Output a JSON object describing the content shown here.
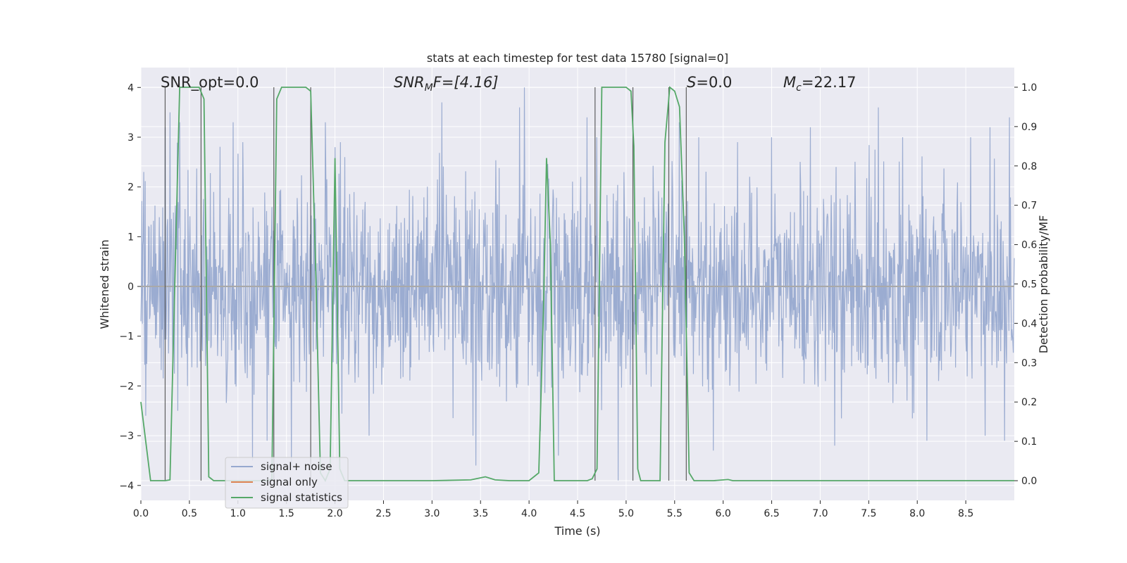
{
  "chart_data": {
    "type": "line",
    "title": "stats at each timestep for test data 15780 [signal=0]",
    "xlabel": "Time (s)",
    "ylabel": "Whitened strain",
    "y2label": "Detection probability/MF",
    "xlim": [
      0.0,
      9.0
    ],
    "ylim": [
      -4.3,
      4.4
    ],
    "y2lim": [
      -0.05,
      1.05
    ],
    "xticks": [
      "0.0",
      "0.5",
      "1.0",
      "1.5",
      "2.0",
      "2.5",
      "3.0",
      "3.5",
      "4.0",
      "4.5",
      "5.0",
      "5.5",
      "6.0",
      "6.5",
      "7.0",
      "7.5",
      "8.0",
      "8.5"
    ],
    "yticks": [
      "4",
      "3",
      "2",
      "1",
      "0",
      "−1",
      "−2",
      "−3",
      "−4"
    ],
    "y2ticks": [
      "1.0",
      "0.9",
      "0.8",
      "0.7",
      "0.6",
      "0.5",
      "0.4",
      "0.3",
      "0.2",
      "0.1",
      "0.0"
    ],
    "grid": true,
    "legend_position": "lower-left",
    "annotations": {
      "snr_opt": "SNR_opt=0.0",
      "snr_mf_main": "SNR",
      "snr_mf_sub": "M",
      "snr_mf_tail": "F=[4.16]",
      "s_main": "S",
      "s_tail": "=0.0",
      "mc_main": "M",
      "mc_sub": "c",
      "mc_tail": "=22.17"
    },
    "series": [
      {
        "name": "signal+ noise",
        "color": "#97a9cf",
        "axis": "left",
        "description": "whitened noisy strain, roughly Gaussian with unit variance, peaks up to about 4",
        "peaks": [
          [
            0.03,
            2.3
          ],
          [
            0.05,
            -2.6
          ],
          [
            0.25,
            3.2
          ],
          [
            0.3,
            3.5
          ],
          [
            0.38,
            -2.5
          ],
          [
            0.4,
            3.3
          ],
          [
            0.75,
            1.9
          ],
          [
            0.95,
            3.3
          ],
          [
            1.05,
            2.9
          ],
          [
            1.15,
            -3.5
          ],
          [
            1.3,
            -3.1
          ],
          [
            1.55,
            -3.6
          ],
          [
            1.9,
            3.3
          ],
          [
            2.0,
            2.8
          ],
          [
            2.1,
            2.6
          ],
          [
            2.35,
            -3.0
          ],
          [
            3.1,
            3.7
          ],
          [
            3.45,
            -3.6
          ],
          [
            3.9,
            3.6
          ],
          [
            3.95,
            4.0
          ],
          [
            4.3,
            -3.4
          ],
          [
            4.6,
            3.4
          ],
          [
            4.7,
            3.0
          ],
          [
            4.92,
            -3.9
          ],
          [
            5.55,
            3.3
          ],
          [
            5.75,
            3.0
          ],
          [
            5.9,
            -3.3
          ],
          [
            6.5,
            3.0
          ],
          [
            6.9,
            3.2
          ],
          [
            7.15,
            -3.2
          ],
          [
            7.6,
            3.6
          ],
          [
            7.85,
            3.0
          ],
          [
            8.1,
            -3.1
          ],
          [
            8.55,
            3.0
          ],
          [
            8.7,
            -3.0
          ],
          [
            8.75,
            3.2
          ],
          [
            8.9,
            -3.1
          ],
          [
            8.95,
            3.4
          ]
        ]
      },
      {
        "name": "signal only",
        "color": "#dd8452",
        "axis": "left",
        "x": [
          0.0,
          9.0
        ],
        "y": [
          0.0,
          0.0
        ]
      },
      {
        "name": "signal statistics",
        "color": "#55a868",
        "axis": "right",
        "x": [
          0.0,
          0.05,
          0.1,
          0.2,
          0.25,
          0.3,
          0.4,
          0.5,
          0.6,
          0.65,
          0.7,
          0.75,
          0.8,
          1.0,
          1.3,
          1.35,
          1.4,
          1.45,
          1.5,
          1.6,
          1.7,
          1.75,
          1.8,
          1.85,
          1.9,
          1.95,
          2.0,
          2.05,
          2.1,
          2.2,
          2.4,
          3.0,
          3.4,
          3.55,
          3.65,
          3.8,
          4.0,
          4.1,
          4.15,
          4.18,
          4.22,
          4.26,
          4.3,
          4.6,
          4.65,
          4.7,
          4.75,
          4.8,
          5.0,
          5.05,
          5.08,
          5.12,
          5.15,
          5.2,
          5.35,
          5.4,
          5.45,
          5.5,
          5.55,
          5.6,
          5.65,
          5.7,
          5.75,
          5.8,
          5.9,
          6.05,
          6.1,
          6.2,
          7.0,
          8.0,
          9.0
        ],
        "y": [
          0.2,
          0.1,
          0.0,
          0.0,
          0.0,
          0.002,
          1.0,
          1.0,
          1.0,
          0.97,
          0.01,
          0.0,
          0.0,
          0.0,
          0.0,
          0.005,
          0.97,
          1.0,
          1.0,
          1.0,
          1.0,
          0.99,
          0.55,
          0.02,
          0.0,
          0.03,
          0.82,
          0.03,
          0.0,
          0.0,
          0.0,
          0.0,
          0.002,
          0.01,
          0.002,
          0.0,
          0.0,
          0.02,
          0.45,
          0.82,
          0.6,
          0.0,
          0.0,
          0.0,
          0.005,
          0.03,
          1.0,
          1.0,
          1.0,
          0.99,
          0.85,
          0.03,
          0.0,
          0.0,
          0.0,
          0.86,
          1.0,
          0.99,
          0.95,
          0.62,
          0.02,
          0.0,
          0.0,
          0.0,
          0.0,
          0.003,
          0.0,
          0.0,
          0.0,
          0.0,
          0.0
        ]
      }
    ],
    "vlines": [
      0.25,
      0.62,
      1.37,
      1.75,
      4.68,
      5.07,
      5.44,
      5.62
    ]
  }
}
